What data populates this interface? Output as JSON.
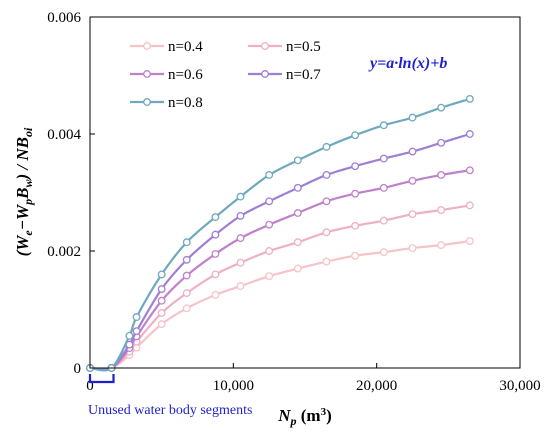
{
  "chart_data": {
    "type": "line",
    "xlim": [
      0,
      30000
    ],
    "ylim": [
      0,
      0.006
    ],
    "x_ticks": [
      0,
      10000,
      20000,
      30000
    ],
    "x_tick_labels": [
      "0",
      "10,000",
      "20,000",
      "30,000"
    ],
    "y_ticks": [
      0,
      0.002,
      0.004,
      0.006
    ],
    "y_tick_labels": [
      "0",
      "0.002",
      "0.004",
      "0.006"
    ],
    "xlabel_main": "N",
    "xlabel_sub": "p",
    "xlabel_unit": " (m",
    "xlabel_sup": "3",
    "xlabel_close": ")",
    "ylabel_parts": [
      "(W",
      "e",
      "−W",
      "p",
      "B",
      "w",
      ") / NB",
      "oi"
    ],
    "equation": "y=a·ln(x)+b",
    "annotation": "Unused water body segments",
    "unused_range": [
      0,
      1500
    ],
    "grid": false,
    "legend_position": "top-left",
    "x": [
      0,
      1500,
      2750,
      3250,
      5000,
      6750,
      8750,
      10500,
      12500,
      14500,
      16500,
      18500,
      20500,
      22500,
      24500,
      26500
    ],
    "series": [
      {
        "name": "n=0.4",
        "color": "#f6c3c8",
        "values": [
          0,
          0,
          0.00022,
          0.00035,
          0.00075,
          0.00102,
          0.00125,
          0.0014,
          0.00157,
          0.0017,
          0.00182,
          0.00192,
          0.00198,
          0.00205,
          0.0021,
          0.00217
        ]
      },
      {
        "name": "n=0.5",
        "color": "#eeb0c2",
        "values": [
          0,
          0,
          0.00028,
          0.00045,
          0.00094,
          0.00128,
          0.0016,
          0.0018,
          0.002,
          0.00215,
          0.00232,
          0.00243,
          0.00252,
          0.00263,
          0.0027,
          0.00278
        ]
      },
      {
        "name": "n=0.6",
        "color": "#c080cc",
        "values": [
          0,
          0,
          0.00034,
          0.00054,
          0.00115,
          0.00158,
          0.00195,
          0.00222,
          0.00245,
          0.00265,
          0.00285,
          0.00298,
          0.00308,
          0.0032,
          0.0033,
          0.00338
        ]
      },
      {
        "name": "n=0.7",
        "color": "#9e7fd6",
        "values": [
          0,
          0,
          0.0004,
          0.00063,
          0.00135,
          0.00185,
          0.00228,
          0.0026,
          0.00285,
          0.00308,
          0.0033,
          0.00345,
          0.00358,
          0.0037,
          0.00385,
          0.004
        ]
      },
      {
        "name": "n=0.8",
        "color": "#6ea9bd",
        "values": [
          0,
          0,
          0.00055,
          0.00087,
          0.0016,
          0.00215,
          0.00258,
          0.00293,
          0.0033,
          0.00355,
          0.00378,
          0.00398,
          0.00415,
          0.00428,
          0.00445,
          0.0046
        ]
      }
    ]
  }
}
